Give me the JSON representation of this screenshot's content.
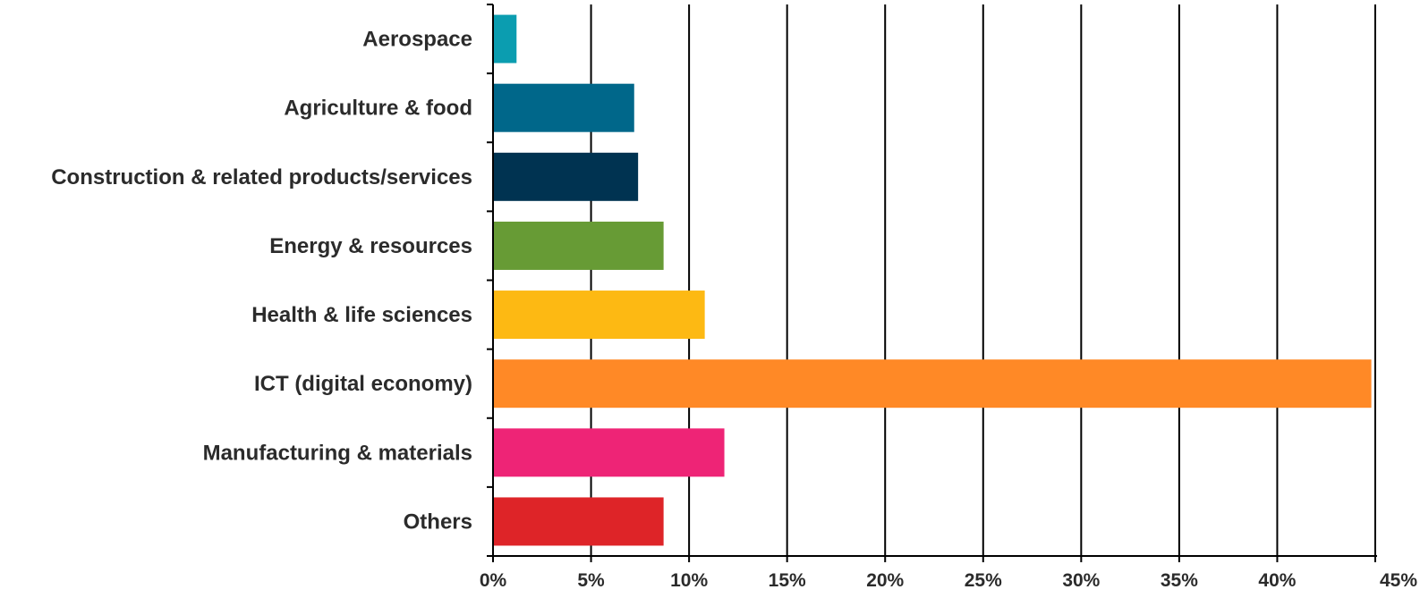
{
  "chart_data": {
    "type": "bar",
    "orientation": "horizontal",
    "title": "",
    "xlabel": "",
    "ylabel": "",
    "categories": [
      "Aerospace",
      "Agriculture & food",
      "Construction & related products/services",
      "Energy & resources",
      "Health & life sciences",
      "ICT (digital economy)",
      "Manufacturing & materials",
      "Others"
    ],
    "values": [
      1.2,
      7.2,
      7.4,
      8.7,
      10.8,
      44.8,
      11.8,
      8.7
    ],
    "unit": "%",
    "colors": [
      "#0B9DB0",
      "#00678A",
      "#003351",
      "#679B35",
      "#FDB913",
      "#FF8926",
      "#EE2476",
      "#DE2428"
    ],
    "xlim": [
      0,
      45
    ],
    "xticks": [
      0,
      5,
      10,
      15,
      20,
      25,
      30,
      35,
      40,
      45
    ],
    "xtick_labels": [
      "0%",
      "5%",
      "10%",
      "15%",
      "20%",
      "25%",
      "30%",
      "35%",
      "40%",
      "45%"
    ],
    "grid": "vertical",
    "legend": "none"
  }
}
